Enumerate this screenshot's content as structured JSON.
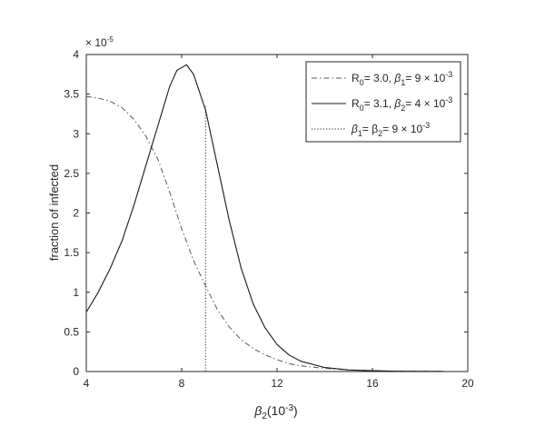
{
  "chart_data": {
    "type": "line",
    "xlabel_main": "β",
    "xlabel_sub": "2",
    "xlabel_unit": "(10",
    "xlabel_exp": "-3",
    "xlabel_close": ")",
    "ylabel": "fraction of infected",
    "y_exponent_label": "× 10",
    "y_exponent_sup": "-5",
    "xlim": [
      4,
      20
    ],
    "ylim": [
      0,
      4
    ],
    "xticks": [
      4,
      8,
      12,
      16,
      20
    ],
    "yticks": [
      0,
      0.5,
      1,
      1.5,
      2,
      2.5,
      3,
      3.5,
      4
    ],
    "ytick_labels": [
      "0",
      "0.5",
      "1",
      "1.5",
      "2",
      "2.5",
      "3",
      "3.5",
      "4"
    ],
    "series": [
      {
        "legend": [
          "R",
          "0",
          "= 3.0, ",
          "β",
          "1",
          "= 9 × 10",
          "-3"
        ],
        "style": "dashdot",
        "color": "#595959",
        "x": [
          4.0,
          4.5,
          5.0,
          5.5,
          6.0,
          6.5,
          7.0,
          7.5,
          8.0,
          8.5,
          9.0,
          9.5,
          10.0,
          10.5,
          11.0,
          11.5,
          12.0,
          12.5,
          13.0,
          14.0,
          15.0,
          16.0,
          17.0,
          18.0,
          19.0
        ],
        "y": [
          3.47,
          3.45,
          3.41,
          3.33,
          3.18,
          2.97,
          2.68,
          2.26,
          1.8,
          1.4,
          1.08,
          0.78,
          0.56,
          0.4,
          0.29,
          0.21,
          0.15,
          0.1,
          0.07,
          0.04,
          0.02,
          0.01,
          0.005,
          0.003,
          0.002
        ]
      },
      {
        "legend": [
          "R",
          "0",
          "= 3.1, ",
          "β",
          "2",
          "= 4 × 10",
          "-3"
        ],
        "style": "solid",
        "color": "#1a1a1a",
        "x": [
          4.0,
          4.5,
          5.0,
          5.5,
          6.0,
          6.5,
          7.0,
          7.5,
          7.8,
          8.2,
          8.5,
          9.0,
          9.5,
          10.0,
          10.5,
          11.0,
          11.5,
          12.0,
          12.5,
          13.0,
          14.0,
          15.0,
          16.0,
          17.0,
          18.0,
          19.0
        ],
        "y": [
          0.75,
          1.0,
          1.3,
          1.65,
          2.1,
          2.6,
          3.1,
          3.6,
          3.8,
          3.87,
          3.75,
          3.3,
          2.6,
          1.9,
          1.3,
          0.85,
          0.55,
          0.34,
          0.21,
          0.13,
          0.05,
          0.02,
          0.01,
          0.004,
          0.002,
          0.001
        ]
      },
      {
        "legend": [
          "",
          "",
          "",
          "β",
          "1",
          "= β",
          "2",
          "= 9 × 10",
          "-3"
        ],
        "style": "dotted",
        "color": "#262626",
        "x": [
          9.0,
          9.0
        ],
        "y": [
          0,
          3.35
        ]
      }
    ]
  }
}
